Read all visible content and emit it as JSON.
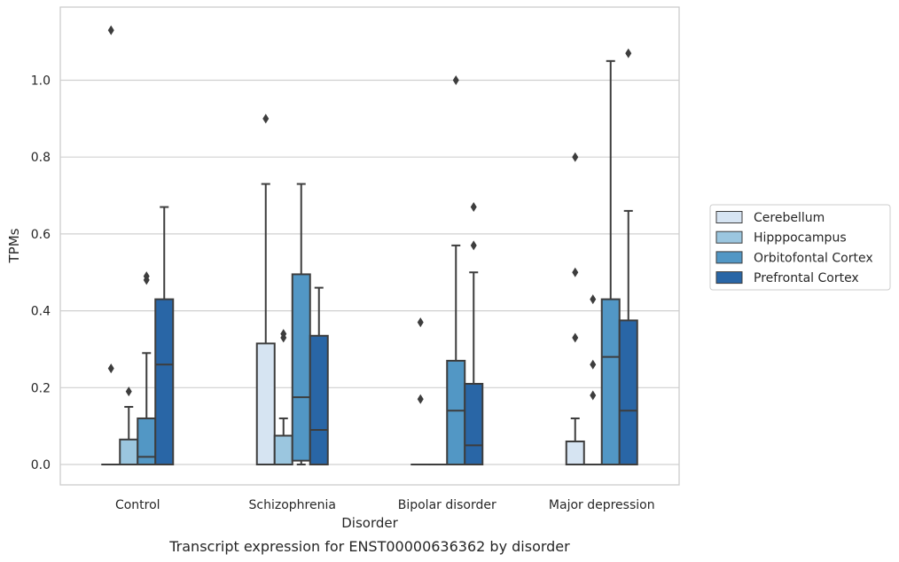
{
  "chart_data": {
    "type": "box",
    "xlabel": "Disorder",
    "ylabel": "TPMs",
    "caption": "Transcript expression for ENST00000636362 by disorder",
    "ylim": [
      -0.055,
      1.16
    ],
    "yticks": [
      "0.0",
      "0.2",
      "0.4",
      "0.6",
      "0.8",
      "1.0"
    ],
    "grid": "horizontal",
    "legend_position": "right",
    "categories": [
      "Control",
      "Schizophrenia",
      "Bipolar disorder",
      "Major depression"
    ],
    "series": [
      {
        "name": "Cerebellum",
        "color": "#d6e4f2",
        "boxes": [
          {
            "q1": 0.0,
            "median": 0.0,
            "q3": 0.0,
            "whislo": 0.0,
            "whishi": 0.0,
            "fliers": [
              0.25,
              1.13
            ]
          },
          {
            "q1": 0.0,
            "median": 0.0,
            "q3": 0.315,
            "whislo": 0.0,
            "whishi": 0.73,
            "fliers": [
              0.9
            ]
          },
          {
            "q1": 0.0,
            "median": 0.0,
            "q3": 0.0,
            "whislo": 0.0,
            "whishi": 0.0,
            "fliers": [
              0.17,
              0.37
            ]
          },
          {
            "q1": 0.0,
            "median": 0.0,
            "q3": 0.06,
            "whislo": 0.0,
            "whishi": 0.12,
            "fliers": [
              0.33,
              0.5,
              0.8
            ]
          }
        ]
      },
      {
        "name": "Hipppocampus",
        "color": "#9bc6df",
        "boxes": [
          {
            "q1": 0.0,
            "median": 0.0,
            "q3": 0.065,
            "whislo": 0.0,
            "whishi": 0.15,
            "fliers": [
              0.19
            ]
          },
          {
            "q1": 0.0,
            "median": 0.0,
            "q3": 0.075,
            "whislo": 0.0,
            "whishi": 0.12,
            "fliers": [
              0.33,
              0.34
            ]
          },
          {
            "q1": 0.0,
            "median": 0.0,
            "q3": 0.0,
            "whislo": 0.0,
            "whishi": 0.0,
            "fliers": []
          },
          {
            "q1": 0.0,
            "median": 0.0,
            "q3": 0.0,
            "whislo": 0.0,
            "whishi": 0.0,
            "fliers": [
              0.18,
              0.26,
              0.43
            ]
          }
        ]
      },
      {
        "name": "Orbitofontal Cortex",
        "color": "#5297c5",
        "boxes": [
          {
            "q1": 0.0,
            "median": 0.02,
            "q3": 0.12,
            "whislo": 0.0,
            "whishi": 0.29,
            "fliers": [
              0.48,
              0.49
            ]
          },
          {
            "q1": 0.01,
            "median": 0.175,
            "q3": 0.495,
            "whislo": 0.0,
            "whishi": 0.73,
            "fliers": []
          },
          {
            "q1": 0.0,
            "median": 0.14,
            "q3": 0.27,
            "whislo": 0.0,
            "whishi": 0.57,
            "fliers": [
              1.0
            ]
          },
          {
            "q1": 0.0,
            "median": 0.28,
            "q3": 0.43,
            "whislo": 0.0,
            "whishi": 1.05,
            "fliers": []
          }
        ]
      },
      {
        "name": "Prefrontal Cortex",
        "color": "#2966a6",
        "boxes": [
          {
            "q1": 0.0,
            "median": 0.26,
            "q3": 0.43,
            "whislo": 0.0,
            "whishi": 0.67,
            "fliers": []
          },
          {
            "q1": 0.0,
            "median": 0.09,
            "q3": 0.335,
            "whislo": 0.0,
            "whishi": 0.46,
            "fliers": []
          },
          {
            "q1": 0.0,
            "median": 0.05,
            "q3": 0.21,
            "whislo": 0.0,
            "whishi": 0.5,
            "fliers": [
              0.57,
              0.67
            ]
          },
          {
            "q1": 0.0,
            "median": 0.14,
            "q3": 0.375,
            "whislo": 0.0,
            "whishi": 0.66,
            "fliers": [
              1.07
            ]
          }
        ]
      }
    ]
  }
}
